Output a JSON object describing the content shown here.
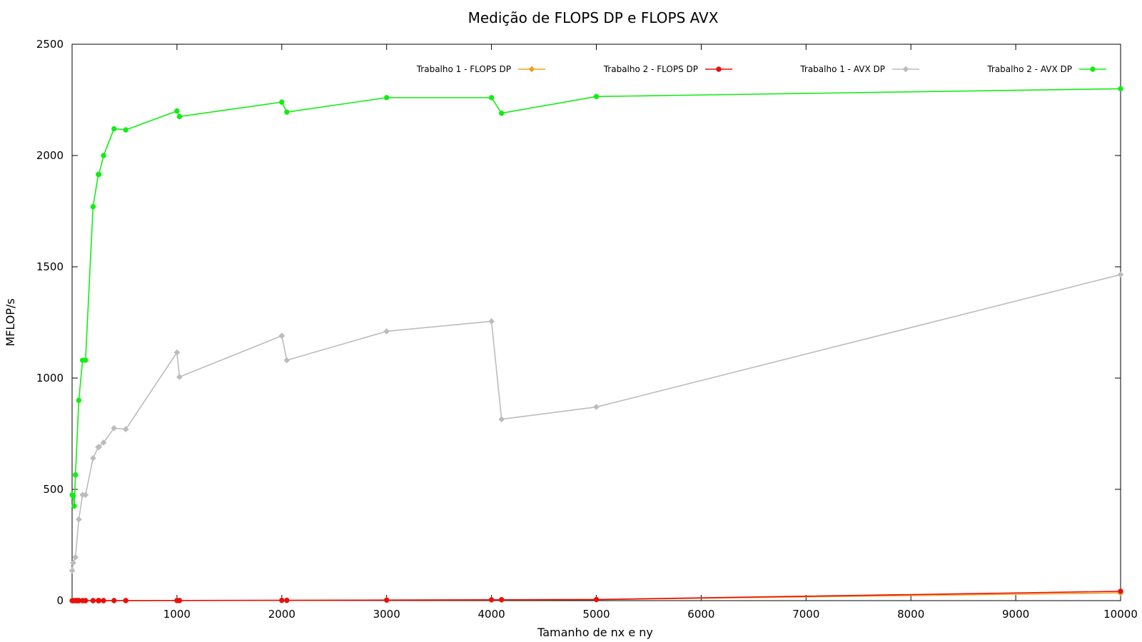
{
  "chart_data": {
    "type": "line",
    "title": "Medição de FLOPS DP e FLOPS AVX",
    "xlabel": "Tamanho de nx e ny",
    "ylabel": "MFLOP/s",
    "xlim": [
      0,
      10000
    ],
    "ylim": [
      0,
      2500
    ],
    "xticks": [
      1000,
      2000,
      3000,
      4000,
      5000,
      6000,
      7000,
      8000,
      9000,
      10000
    ],
    "yticks": [
      0,
      500,
      1000,
      1500,
      2000,
      2500
    ],
    "grid": false,
    "legend_position": "top",
    "series": [
      {
        "name": "Trabalho 1 - FLOPS DP",
        "color": "#f0a01e",
        "marker": "diamond",
        "x": [
          1,
          10,
          32,
          50,
          64,
          100,
          128,
          200,
          250,
          256,
          300,
          400,
          512,
          1000,
          1024,
          2000,
          2048,
          3000,
          4000,
          4096,
          5000,
          10000
        ],
        "y": [
          0.01,
          0.01,
          0.01,
          0.02,
          0.02,
          0.03,
          0.04,
          0.07,
          0.09,
          0.09,
          0.12,
          0.2,
          0.3,
          0.5,
          0.5,
          1.2,
          1.2,
          2.2,
          3.4,
          3.5,
          4.5,
          35
        ]
      },
      {
        "name": "Trabalho 2 - FLOPS DP",
        "color": "#e8100e",
        "marker": "circle",
        "x": [
          1,
          10,
          32,
          50,
          64,
          100,
          128,
          200,
          250,
          256,
          300,
          400,
          512,
          1000,
          1024,
          2000,
          2048,
          3000,
          4000,
          4096,
          5000,
          10000
        ],
        "y": [
          0.01,
          0.01,
          0.01,
          0.02,
          0.02,
          0.03,
          0.04,
          0.07,
          0.09,
          0.09,
          0.12,
          0.2,
          0.3,
          0.6,
          0.6,
          1.3,
          1.3,
          2.5,
          3.8,
          4,
          5,
          42
        ]
      },
      {
        "name": "Trabalho 1 - AVX DP",
        "color": "#bcbcbc",
        "marker": "diamond",
        "x": [
          1,
          10,
          32,
          64,
          100,
          128,
          200,
          250,
          256,
          300,
          400,
          512,
          1000,
          1024,
          2000,
          2048,
          3000,
          4000,
          4096,
          5000,
          10000
        ],
        "y": [
          135,
          170,
          195,
          365,
          475,
          475,
          640,
          690,
          690,
          710,
          775,
          770,
          1115,
          1005,
          1190,
          1080,
          1210,
          1255,
          815,
          870,
          1465
        ]
      },
      {
        "name": "Trabalho 2 - AVX DP",
        "color": "#11ee11",
        "marker": "circle",
        "x": [
          1,
          10,
          20,
          32,
          64,
          100,
          128,
          200,
          250,
          256,
          300,
          400,
          512,
          1000,
          1024,
          2000,
          2048,
          3000,
          4000,
          4096,
          5000,
          10000
        ],
        "y": [
          475,
          470,
          425,
          565,
          900,
          1080,
          1080,
          1770,
          1915,
          1915,
          2000,
          2120,
          2115,
          2200,
          2175,
          2240,
          2195,
          2260,
          2260,
          2190,
          2265,
          2300
        ]
      }
    ]
  }
}
